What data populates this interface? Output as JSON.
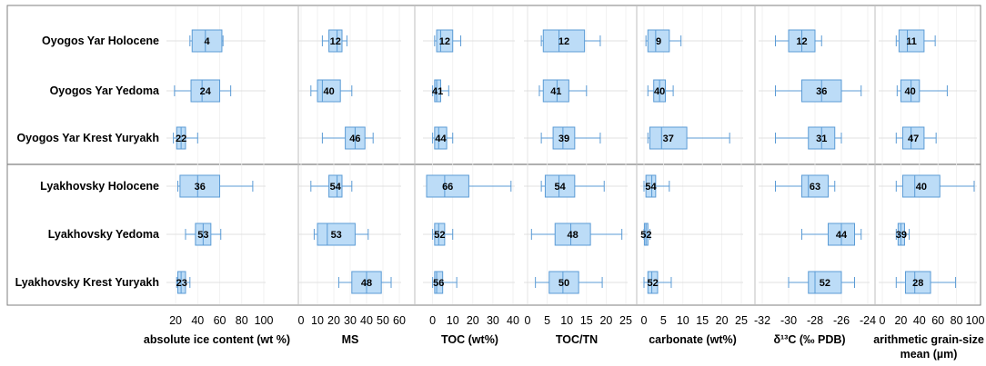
{
  "row_labels": [
    "Oyogos Yar Holocene",
    "Oyogos Yar Yedoma",
    "Oyogos Yar Krest Yuryakh",
    "Lyakhovsky Holocene",
    "Lyakhovsky Yedoma",
    "Lyakhovsky Krest Yuryakh"
  ],
  "colors": {
    "box_fill": "#bcdcf7",
    "box_stroke": "#5b9bd5",
    "whisker": "#5b9bd5",
    "grid": "#d9d9d9",
    "divider": "#7f7f7f",
    "panel_line": "#bfbfbf"
  },
  "chart_data": [
    {
      "type": "boxplot",
      "xlabel": "absolute ice content (wt %)",
      "xlim": [
        15,
        100
      ],
      "ticks": [
        "20",
        "40",
        "60",
        "80",
        "100"
      ],
      "tick_values": [
        20,
        40,
        60,
        80,
        100
      ],
      "boxes": [
        {
          "min": 33,
          "q1": 35,
          "median": 47,
          "q3": 62,
          "max": 63,
          "n": "4"
        },
        {
          "min": 19,
          "q1": 34,
          "median": 44,
          "q3": 60,
          "max": 70,
          "n": "24"
        },
        {
          "min": 18,
          "q1": 21,
          "median": 25,
          "q3": 29,
          "max": 40,
          "n": "22"
        },
        {
          "min": 22,
          "q1": 24,
          "median": 40,
          "q3": 60,
          "max": 90,
          "n": "36"
        },
        {
          "min": 29,
          "q1": 38,
          "median": 45,
          "q3": 52,
          "max": 61,
          "n": "53"
        },
        {
          "min": 21,
          "q1": 22,
          "median": 25,
          "q3": 29,
          "max": 33,
          "n": "23"
        }
      ]
    },
    {
      "type": "boxplot",
      "xlabel": "MS",
      "xlim": [
        0,
        60
      ],
      "ticks": [
        "0",
        "10",
        "20",
        "30",
        "40",
        "50",
        "60"
      ],
      "tick_values": [
        0,
        10,
        20,
        30,
        40,
        50,
        60
      ],
      "boxes": [
        {
          "min": 13,
          "q1": 17,
          "median": 22,
          "q3": 25,
          "max": 28,
          "n": "12"
        },
        {
          "min": 6,
          "q1": 10,
          "median": 13,
          "q3": 24,
          "max": 31,
          "n": "40"
        },
        {
          "min": 13,
          "q1": 27,
          "median": 33,
          "q3": 39,
          "max": 44,
          "n": "46"
        },
        {
          "min": 6,
          "q1": 17,
          "median": 22,
          "q3": 25,
          "max": 31,
          "n": "54"
        },
        {
          "min": 8,
          "q1": 10,
          "median": 16,
          "q3": 33,
          "max": 41,
          "n": "53"
        },
        {
          "min": 23,
          "q1": 31,
          "median": 40,
          "q3": 49,
          "max": 55,
          "n": "48"
        }
      ]
    },
    {
      "type": "boxplot",
      "xlabel": "TOC (wt%)",
      "xlim": [
        -3,
        40
      ],
      "ticks": [
        "0",
        "10",
        "20",
        "30",
        "40"
      ],
      "tick_values": [
        0,
        10,
        20,
        30,
        40
      ],
      "boxes": [
        {
          "min": 1,
          "q1": 2,
          "median": 4,
          "q3": 10,
          "max": 14,
          "n": "12"
        },
        {
          "min": 0,
          "q1": 1,
          "median": 2,
          "q3": 4,
          "max": 8,
          "n": "41"
        },
        {
          "min": 0,
          "q1": 1,
          "median": 3,
          "q3": 7,
          "max": 10,
          "n": "44"
        },
        {
          "min": -3,
          "q1": -3,
          "median": 6,
          "q3": 18,
          "max": 39,
          "n": "66"
        },
        {
          "min": 0,
          "q1": 1,
          "median": 3,
          "q3": 6,
          "max": 10,
          "n": "52"
        },
        {
          "min": 0,
          "q1": 1,
          "median": 2,
          "q3": 5,
          "max": 12,
          "n": "56"
        }
      ]
    },
    {
      "type": "boxplot",
      "xlabel": "TOC/TN",
      "xlim": [
        0,
        25
      ],
      "ticks": [
        "0",
        "5",
        "10",
        "15",
        "20",
        "25"
      ],
      "tick_values": [
        0,
        5,
        10,
        15,
        20,
        25
      ],
      "boxes": [
        {
          "min": 3.5,
          "q1": 4,
          "median": 8,
          "q3": 14.5,
          "max": 18.5,
          "n": "12"
        },
        {
          "min": 3,
          "q1": 4,
          "median": 7.5,
          "q3": 10.5,
          "max": 15,
          "n": "41"
        },
        {
          "min": 3.5,
          "q1": 6.5,
          "median": 9,
          "q3": 12,
          "max": 18.5,
          "n": "39"
        },
        {
          "min": 3.5,
          "q1": 4.5,
          "median": 8,
          "q3": 12,
          "max": 19.5,
          "n": "54"
        },
        {
          "min": 1,
          "q1": 7,
          "median": 11,
          "q3": 16,
          "max": 24,
          "n": "48"
        },
        {
          "min": 2,
          "q1": 5.5,
          "median": 9,
          "q3": 13,
          "max": 19,
          "n": "50"
        }
      ]
    },
    {
      "type": "boxplot",
      "xlabel": "carbonate (wt%)",
      "xlim": [
        0,
        25
      ],
      "ticks": [
        "0",
        "5",
        "10",
        "15",
        "20",
        "25"
      ],
      "tick_values": [
        0,
        5,
        10,
        15,
        20,
        25
      ],
      "boxes": [
        {
          "min": 0.5,
          "q1": 1,
          "median": 3,
          "q3": 6.5,
          "max": 9.5,
          "n": "9"
        },
        {
          "min": 1,
          "q1": 2.5,
          "median": 4,
          "q3": 5.5,
          "max": 7.5,
          "n": "40"
        },
        {
          "min": 1,
          "q1": 1.5,
          "median": 4.5,
          "q3": 11,
          "max": 22,
          "n": "37"
        },
        {
          "min": 0,
          "q1": 0.5,
          "median": 2,
          "q3": 3,
          "max": 6.5,
          "n": "54"
        },
        {
          "min": 0,
          "q1": 0.1,
          "median": 0.5,
          "q3": 1,
          "max": 1.5,
          "n": "52"
        },
        {
          "min": 0,
          "q1": 1,
          "median": 2,
          "q3": 3.5,
          "max": 7,
          "n": "52"
        }
      ]
    },
    {
      "type": "boxplot",
      "xlabel": "δ¹³C (‰ PDB)",
      "xlim": [
        -32,
        -24
      ],
      "ticks": [
        "-32",
        "-30",
        "-28",
        "-26",
        "-24"
      ],
      "tick_values": [
        -32,
        -30,
        -28,
        -26,
        -24
      ],
      "boxes": [
        {
          "min": -31,
          "q1": -30,
          "median": -29,
          "q3": -28,
          "max": -27.5,
          "n": "12"
        },
        {
          "min": -31,
          "q1": -29,
          "median": -27.5,
          "q3": -26,
          "max": -24.5,
          "n": "36"
        },
        {
          "min": -31,
          "q1": -28.5,
          "median": -27.5,
          "q3": -26.5,
          "max": -26,
          "n": "31"
        },
        {
          "min": -31,
          "q1": -29,
          "median": -28.5,
          "q3": -27,
          "max": -26.5,
          "n": "63"
        },
        {
          "min": -29,
          "q1": -27,
          "median": -26,
          "q3": -25,
          "max": -24.5,
          "n": "44"
        },
        {
          "min": -30,
          "q1": -28.5,
          "median": -28,
          "q3": -26,
          "max": -25,
          "n": "52"
        }
      ]
    },
    {
      "type": "boxplot",
      "xlabel": "arithmetic grain-size mean (µm)",
      "xlim": [
        0,
        100
      ],
      "ticks": [
        "0",
        "20",
        "40",
        "60",
        "80",
        "100"
      ],
      "tick_values": [
        0,
        20,
        40,
        60,
        80,
        100
      ],
      "boxes": [
        {
          "min": 15,
          "q1": 18,
          "median": 27,
          "q3": 45,
          "max": 57,
          "n": "11"
        },
        {
          "min": 16,
          "q1": 20,
          "median": 31,
          "q3": 40,
          "max": 70,
          "n": "40"
        },
        {
          "min": 15,
          "q1": 22,
          "median": 31,
          "q3": 45,
          "max": 58,
          "n": "47"
        },
        {
          "min": 15,
          "q1": 22,
          "median": 35,
          "q3": 62,
          "max": 99,
          "n": "40"
        },
        {
          "min": 15,
          "q1": 17,
          "median": 20,
          "q3": 24,
          "max": 29,
          "n": "39"
        },
        {
          "min": 15,
          "q1": 25,
          "median": 35,
          "q3": 52,
          "max": 79,
          "n": "28"
        }
      ]
    }
  ]
}
